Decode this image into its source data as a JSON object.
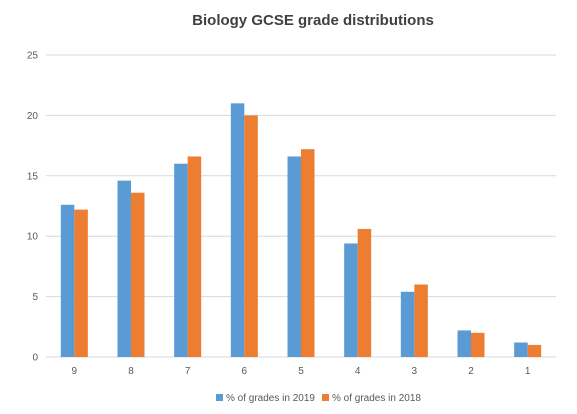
{
  "chart_data": {
    "type": "bar",
    "title": "Biology GCSE grade distributions",
    "xlabel": "",
    "ylabel": "",
    "categories": [
      "9",
      "8",
      "7",
      "6",
      "5",
      "4",
      "3",
      "2",
      "1"
    ],
    "series": [
      {
        "name": "% of grades in 2019",
        "color": "#5b9bd5",
        "values": [
          12.6,
          14.6,
          16.0,
          21.0,
          16.6,
          9.4,
          5.4,
          2.2,
          1.2
        ]
      },
      {
        "name": "% of grades in 2018",
        "color": "#ed7d31",
        "values": [
          12.2,
          13.6,
          16.6,
          20.0,
          17.2,
          10.6,
          6.0,
          2.0,
          1.0
        ]
      }
    ],
    "ylim": [
      0,
      25
    ],
    "yticks": [
      "0",
      "5",
      "10",
      "15",
      "20",
      "25"
    ],
    "grid": true,
    "legend_position": "bottom"
  }
}
